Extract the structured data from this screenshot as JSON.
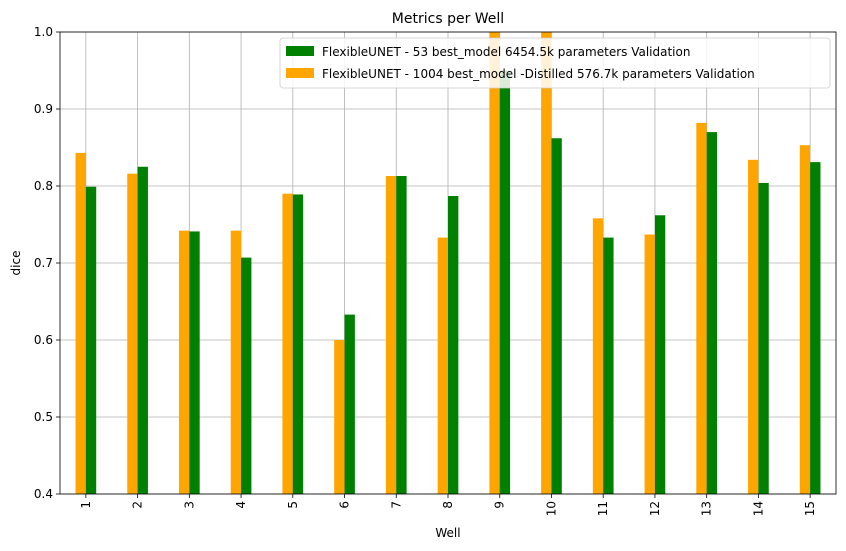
{
  "chart_data": {
    "type": "bar",
    "title": "Metrics per Well",
    "xlabel": "Well",
    "ylabel": "dice",
    "ylim": [
      0.4,
      1.0
    ],
    "yticks": [
      "0.4",
      "0.5",
      "0.6",
      "0.7",
      "0.8",
      "0.9",
      "1.0"
    ],
    "grid": true,
    "legend_position": "top-right",
    "categories": [
      "1",
      "2",
      "3",
      "4",
      "5",
      "6",
      "7",
      "8",
      "9",
      "10",
      "11",
      "12",
      "13",
      "14",
      "15"
    ],
    "series": [
      {
        "name": "FlexibleUNET - 1004 best_model -Distilled 576.7k parameters Validation",
        "color": "#ffa500",
        "values": [
          0.843,
          0.816,
          0.742,
          0.742,
          0.79,
          0.6,
          0.813,
          0.733,
          1.0,
          1.0,
          0.758,
          0.737,
          0.882,
          0.834,
          0.853
        ]
      },
      {
        "name": "FlexibleUNET - 53 best_model 6454.5k parameters Validation",
        "color": "#008000",
        "values": [
          0.799,
          0.825,
          0.741,
          0.707,
          0.789,
          0.633,
          0.813,
          0.787,
          0.95,
          0.862,
          0.733,
          0.762,
          0.87,
          0.804,
          0.831
        ]
      }
    ],
    "legend_order": [
      1,
      0
    ]
  }
}
